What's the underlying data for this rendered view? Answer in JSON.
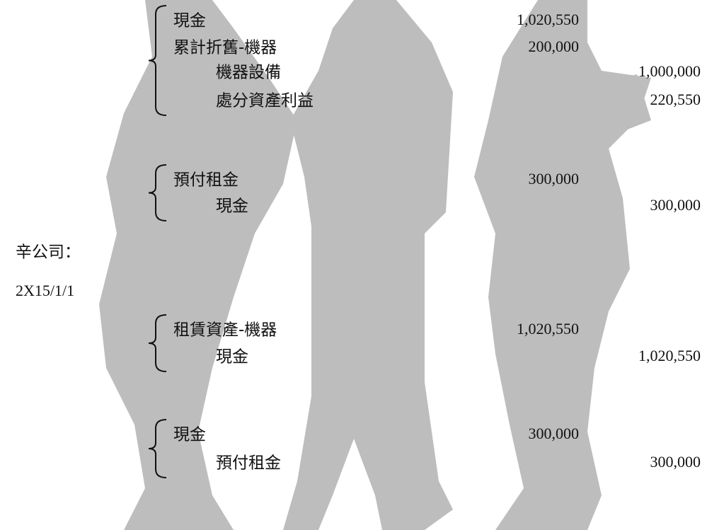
{
  "company": "辛公司：",
  "date": "2X15/1/1",
  "entries": [
    {
      "lines": [
        {
          "account": "現金",
          "debit": "1,020,550"
        },
        {
          "account": "累計折舊-機器",
          "debit": "200,000"
        },
        {
          "account": "機器設備",
          "credit": "1,000,000"
        },
        {
          "account": "處分資產利益",
          "credit": "220,550"
        }
      ]
    },
    {
      "lines": [
        {
          "account": "預付租金",
          "debit": "300,000"
        },
        {
          "account": "現金",
          "credit": "300,000"
        }
      ]
    },
    {
      "lines": [
        {
          "account": "租賃資產-機器",
          "debit": "1,020,550"
        },
        {
          "account": "現金",
          "credit": "1,020,550"
        }
      ]
    },
    {
      "lines": [
        {
          "account": "現金",
          "debit": "300,000"
        },
        {
          "account": "預付租金",
          "credit": "300,000"
        }
      ]
    }
  ]
}
